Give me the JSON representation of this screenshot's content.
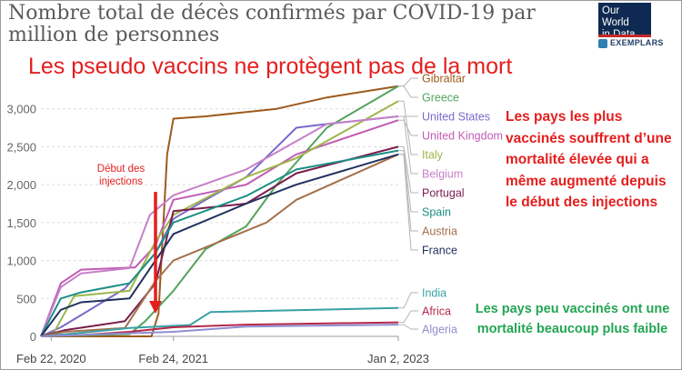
{
  "title": "Nombre total de décès confirmés par COVID-19 par million de personnes",
  "logo": {
    "line1": "Our World",
    "line2": "in Data"
  },
  "exemplars": "EXEMPLARS",
  "headline": "Les pseudo vaccins ne protègent pas de la mort",
  "annotation_high": "Les pays les plus vaccinés souffrent d’une mortalité élevée qui a même augmenté depuis le début des injections",
  "annotation_low": "Les pays peu vaccinés ont une mortalité beaucoup plus faible",
  "marker": "Début des injections",
  "colors": {
    "red": "#e41e1e",
    "green": "#23a553"
  },
  "chart_data": {
    "type": "line",
    "title": "Nombre total de décès confirmés par COVID-19 par million de personnes",
    "ylim": [
      0,
      3200
    ],
    "yticks": [
      0,
      500,
      1000,
      1500,
      2000,
      2500,
      3000
    ],
    "ytick_labels": [
      "0",
      "500",
      "1,000",
      "1,500",
      "2,000",
      "2,500",
      "3,000"
    ],
    "xlim": [
      "2020-01-22",
      "2023-01-02"
    ],
    "xticks": [
      "2020-02-22",
      "2021-02-24",
      "2023-01-02"
    ],
    "xtick_labels": [
      "Feb 22, 2020",
      "Feb 24, 2021",
      "Jan 2, 2023"
    ],
    "marker_date": "2021-01-01",
    "grid": true,
    "series": [
      {
        "name": "Gibraltar",
        "color": "#9c5a1c",
        "x": [
          "2020-01-22",
          "2020-12-20",
          "2021-01-10",
          "2021-02-05",
          "2021-02-24",
          "2021-06-01",
          "2022-01-01",
          "2022-06-01",
          "2023-01-02"
        ],
        "y": [
          0,
          0,
          300,
          2400,
          2870,
          2900,
          3000,
          3150,
          3300
        ]
      },
      {
        "name": "Greece",
        "color": "#54a35e",
        "x": [
          "2020-01-22",
          "2020-10-15",
          "2020-12-01",
          "2021-02-24",
          "2021-06-01",
          "2021-10-01",
          "2022-01-01",
          "2022-06-01",
          "2023-01-02"
        ],
        "y": [
          0,
          30,
          200,
          600,
          1150,
          1450,
          2000,
          2750,
          3300
        ]
      },
      {
        "name": "United States",
        "color": "#7b69c9",
        "x": [
          "2020-01-22",
          "2020-03-22",
          "2020-05-22",
          "2020-10-01",
          "2021-01-01",
          "2021-02-24",
          "2021-06-01",
          "2021-10-01",
          "2022-03-01",
          "2022-06-01",
          "2023-01-02"
        ],
        "y": [
          0,
          120,
          280,
          630,
          1100,
          1550,
          1800,
          2100,
          2750,
          2800,
          2900
        ]
      },
      {
        "name": "United Kingdom",
        "color": "#c15bb5",
        "x": [
          "2020-01-22",
          "2020-03-22",
          "2020-05-22",
          "2020-11-01",
          "2021-01-01",
          "2021-02-24",
          "2021-10-01",
          "2022-03-01",
          "2023-01-02"
        ],
        "y": [
          0,
          700,
          880,
          910,
          1200,
          1800,
          2000,
          2400,
          2850
        ]
      },
      {
        "name": "Italy",
        "color": "#9db64a",
        "x": [
          "2020-01-22",
          "2020-03-01",
          "2020-05-01",
          "2020-10-15",
          "2021-01-01",
          "2021-02-24",
          "2021-10-01",
          "2022-03-01",
          "2023-01-02"
        ],
        "y": [
          0,
          50,
          530,
          600,
          1250,
          1600,
          2100,
          2350,
          3100
        ]
      },
      {
        "name": "Belgium",
        "color": "#c680c8",
        "x": [
          "2020-01-22",
          "2020-03-22",
          "2020-05-22",
          "2020-10-15",
          "2020-12-15",
          "2021-02-24",
          "2021-10-01",
          "2022-06-01",
          "2023-01-02"
        ],
        "y": [
          0,
          650,
          830,
          900,
          1600,
          1860,
          2200,
          2800,
          2900
        ]
      },
      {
        "name": "Portugal",
        "color": "#7a1d4e",
        "x": [
          "2020-01-22",
          "2020-04-01",
          "2020-10-01",
          "2021-01-01",
          "2021-02-24",
          "2021-10-01",
          "2022-03-01",
          "2023-01-02"
        ],
        "y": [
          0,
          80,
          200,
          700,
          1650,
          1750,
          2150,
          2500
        ]
      },
      {
        "name": "Spain",
        "color": "#1d8f86",
        "x": [
          "2020-01-22",
          "2020-03-22",
          "2020-05-22",
          "2020-10-15",
          "2021-01-01",
          "2021-02-24",
          "2021-10-01",
          "2022-03-01",
          "2023-01-02"
        ],
        "y": [
          0,
          500,
          580,
          700,
          1100,
          1500,
          1850,
          2200,
          2450
        ]
      },
      {
        "name": "Austria",
        "color": "#a4704c",
        "x": [
          "2020-01-22",
          "2020-04-01",
          "2020-10-01",
          "2021-01-01",
          "2021-02-24",
          "2021-12-01",
          "2022-03-01",
          "2023-01-02"
        ],
        "y": [
          0,
          60,
          110,
          730,
          1000,
          1500,
          1800,
          2400
        ]
      },
      {
        "name": "France",
        "color": "#21305e",
        "x": [
          "2020-01-22",
          "2020-03-22",
          "2020-05-22",
          "2020-10-15",
          "2021-01-01",
          "2021-02-24",
          "2021-10-01",
          "2022-03-01",
          "2023-01-02"
        ],
        "y": [
          0,
          350,
          450,
          500,
          1000,
          1350,
          1750,
          2000,
          2400
        ]
      },
      {
        "name": "India",
        "color": "#38a1a5",
        "x": [
          "2020-01-22",
          "2020-06-01",
          "2020-10-15",
          "2021-04-15",
          "2021-06-15",
          "2023-01-02"
        ],
        "y": [
          0,
          50,
          110,
          150,
          320,
          375
        ]
      },
      {
        "name": "Africa",
        "color": "#b5284a",
        "x": [
          "2020-01-22",
          "2020-06-01",
          "2020-10-15",
          "2021-02-24",
          "2021-10-01",
          "2023-01-02"
        ],
        "y": [
          0,
          20,
          60,
          120,
          155,
          185
        ]
      },
      {
        "name": "Algeria",
        "color": "#8f8fd1",
        "x": [
          "2020-01-22",
          "2020-06-01",
          "2021-02-24",
          "2021-10-01",
          "2023-01-02"
        ],
        "y": [
          0,
          20,
          60,
          130,
          155
        ]
      }
    ]
  }
}
